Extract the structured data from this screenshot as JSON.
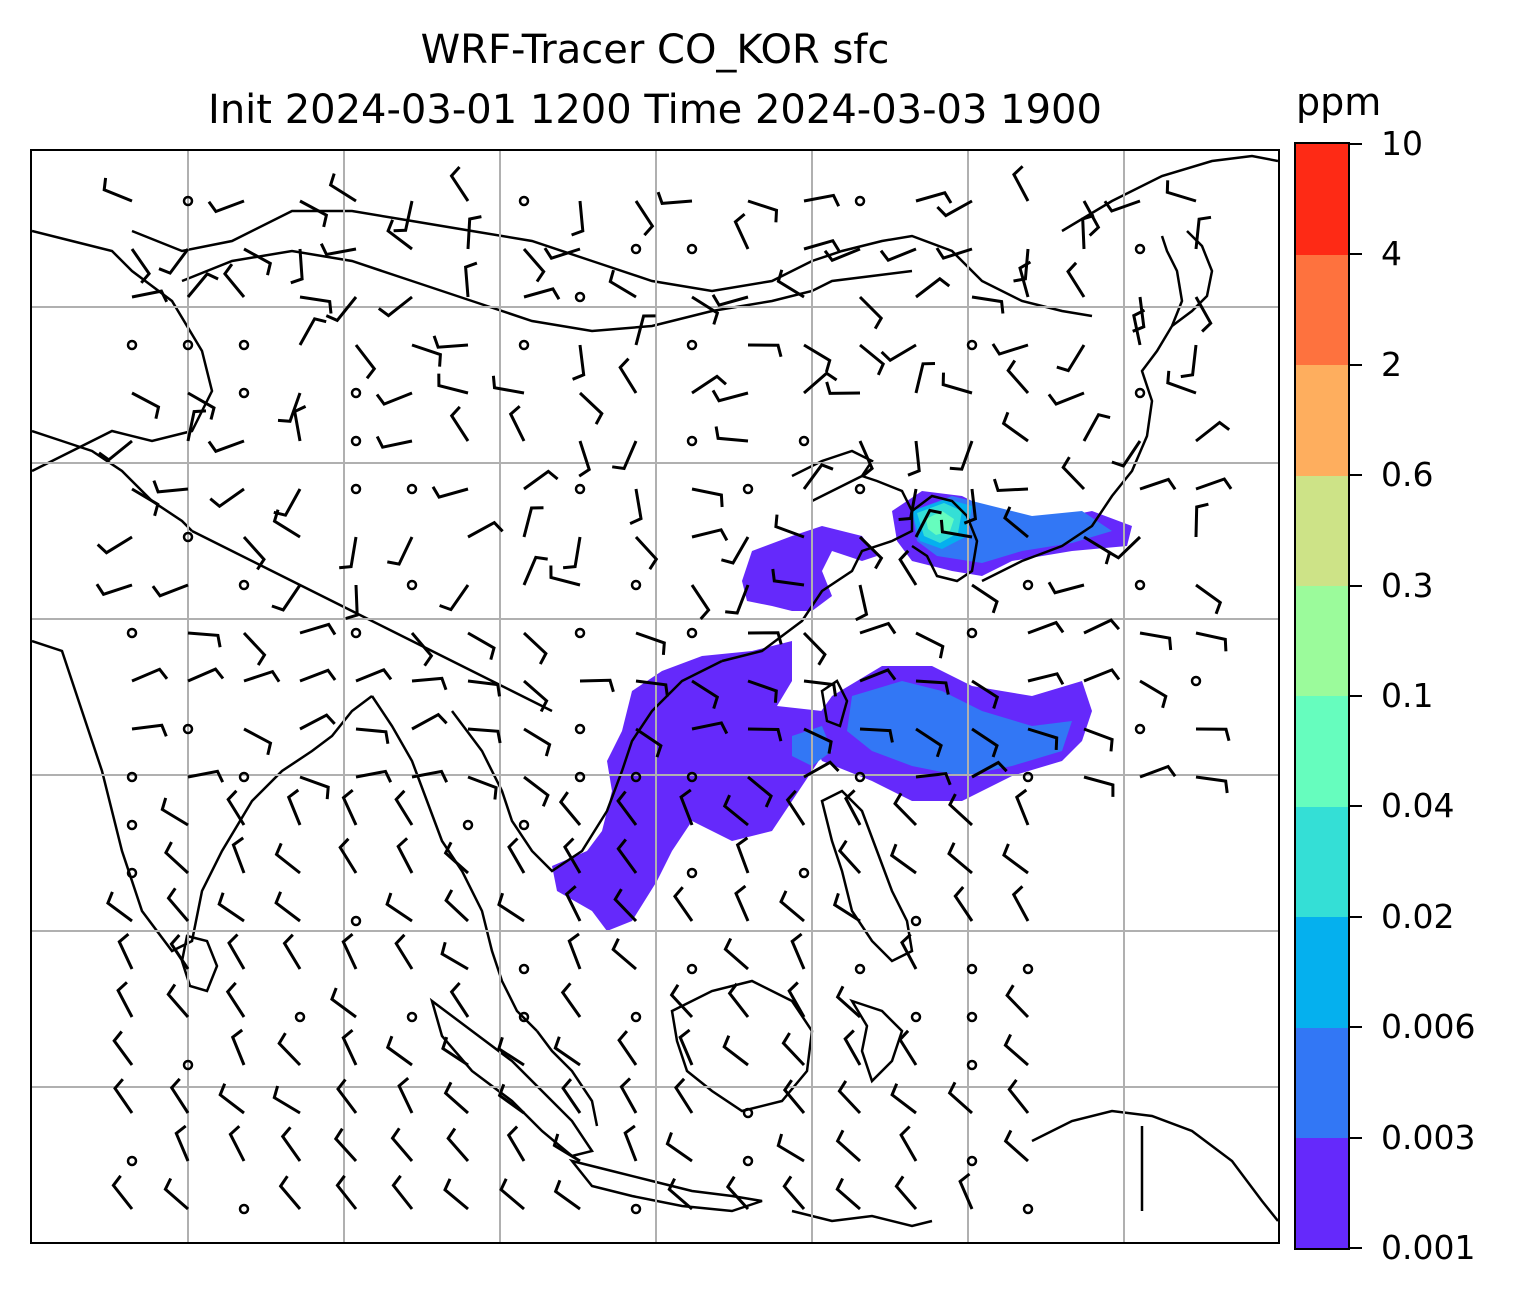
{
  "title": {
    "line1": "WRF-Tracer CO_KOR sfc",
    "line2": "Init 2024-03-01 1200 Time 2024-03-03 1900"
  },
  "colorbar": {
    "unit": "ppm",
    "ticks": [
      "0.001",
      "0.003",
      "0.006",
      "0.02",
      "0.04",
      "0.1",
      "0.3",
      "0.6",
      "2",
      "4",
      "10"
    ],
    "colors": [
      "#6529fb",
      "#3277f5",
      "#05b0ee",
      "#34dfd6",
      "#66fdbe",
      "#9bfb9b",
      "#cde387",
      "#feae5e",
      "#fe723e",
      "#fe2a15"
    ]
  },
  "colors": {
    "coastline": "#000000",
    "gridline": "#b0b0b0",
    "wind_barb": "#000000"
  }
}
